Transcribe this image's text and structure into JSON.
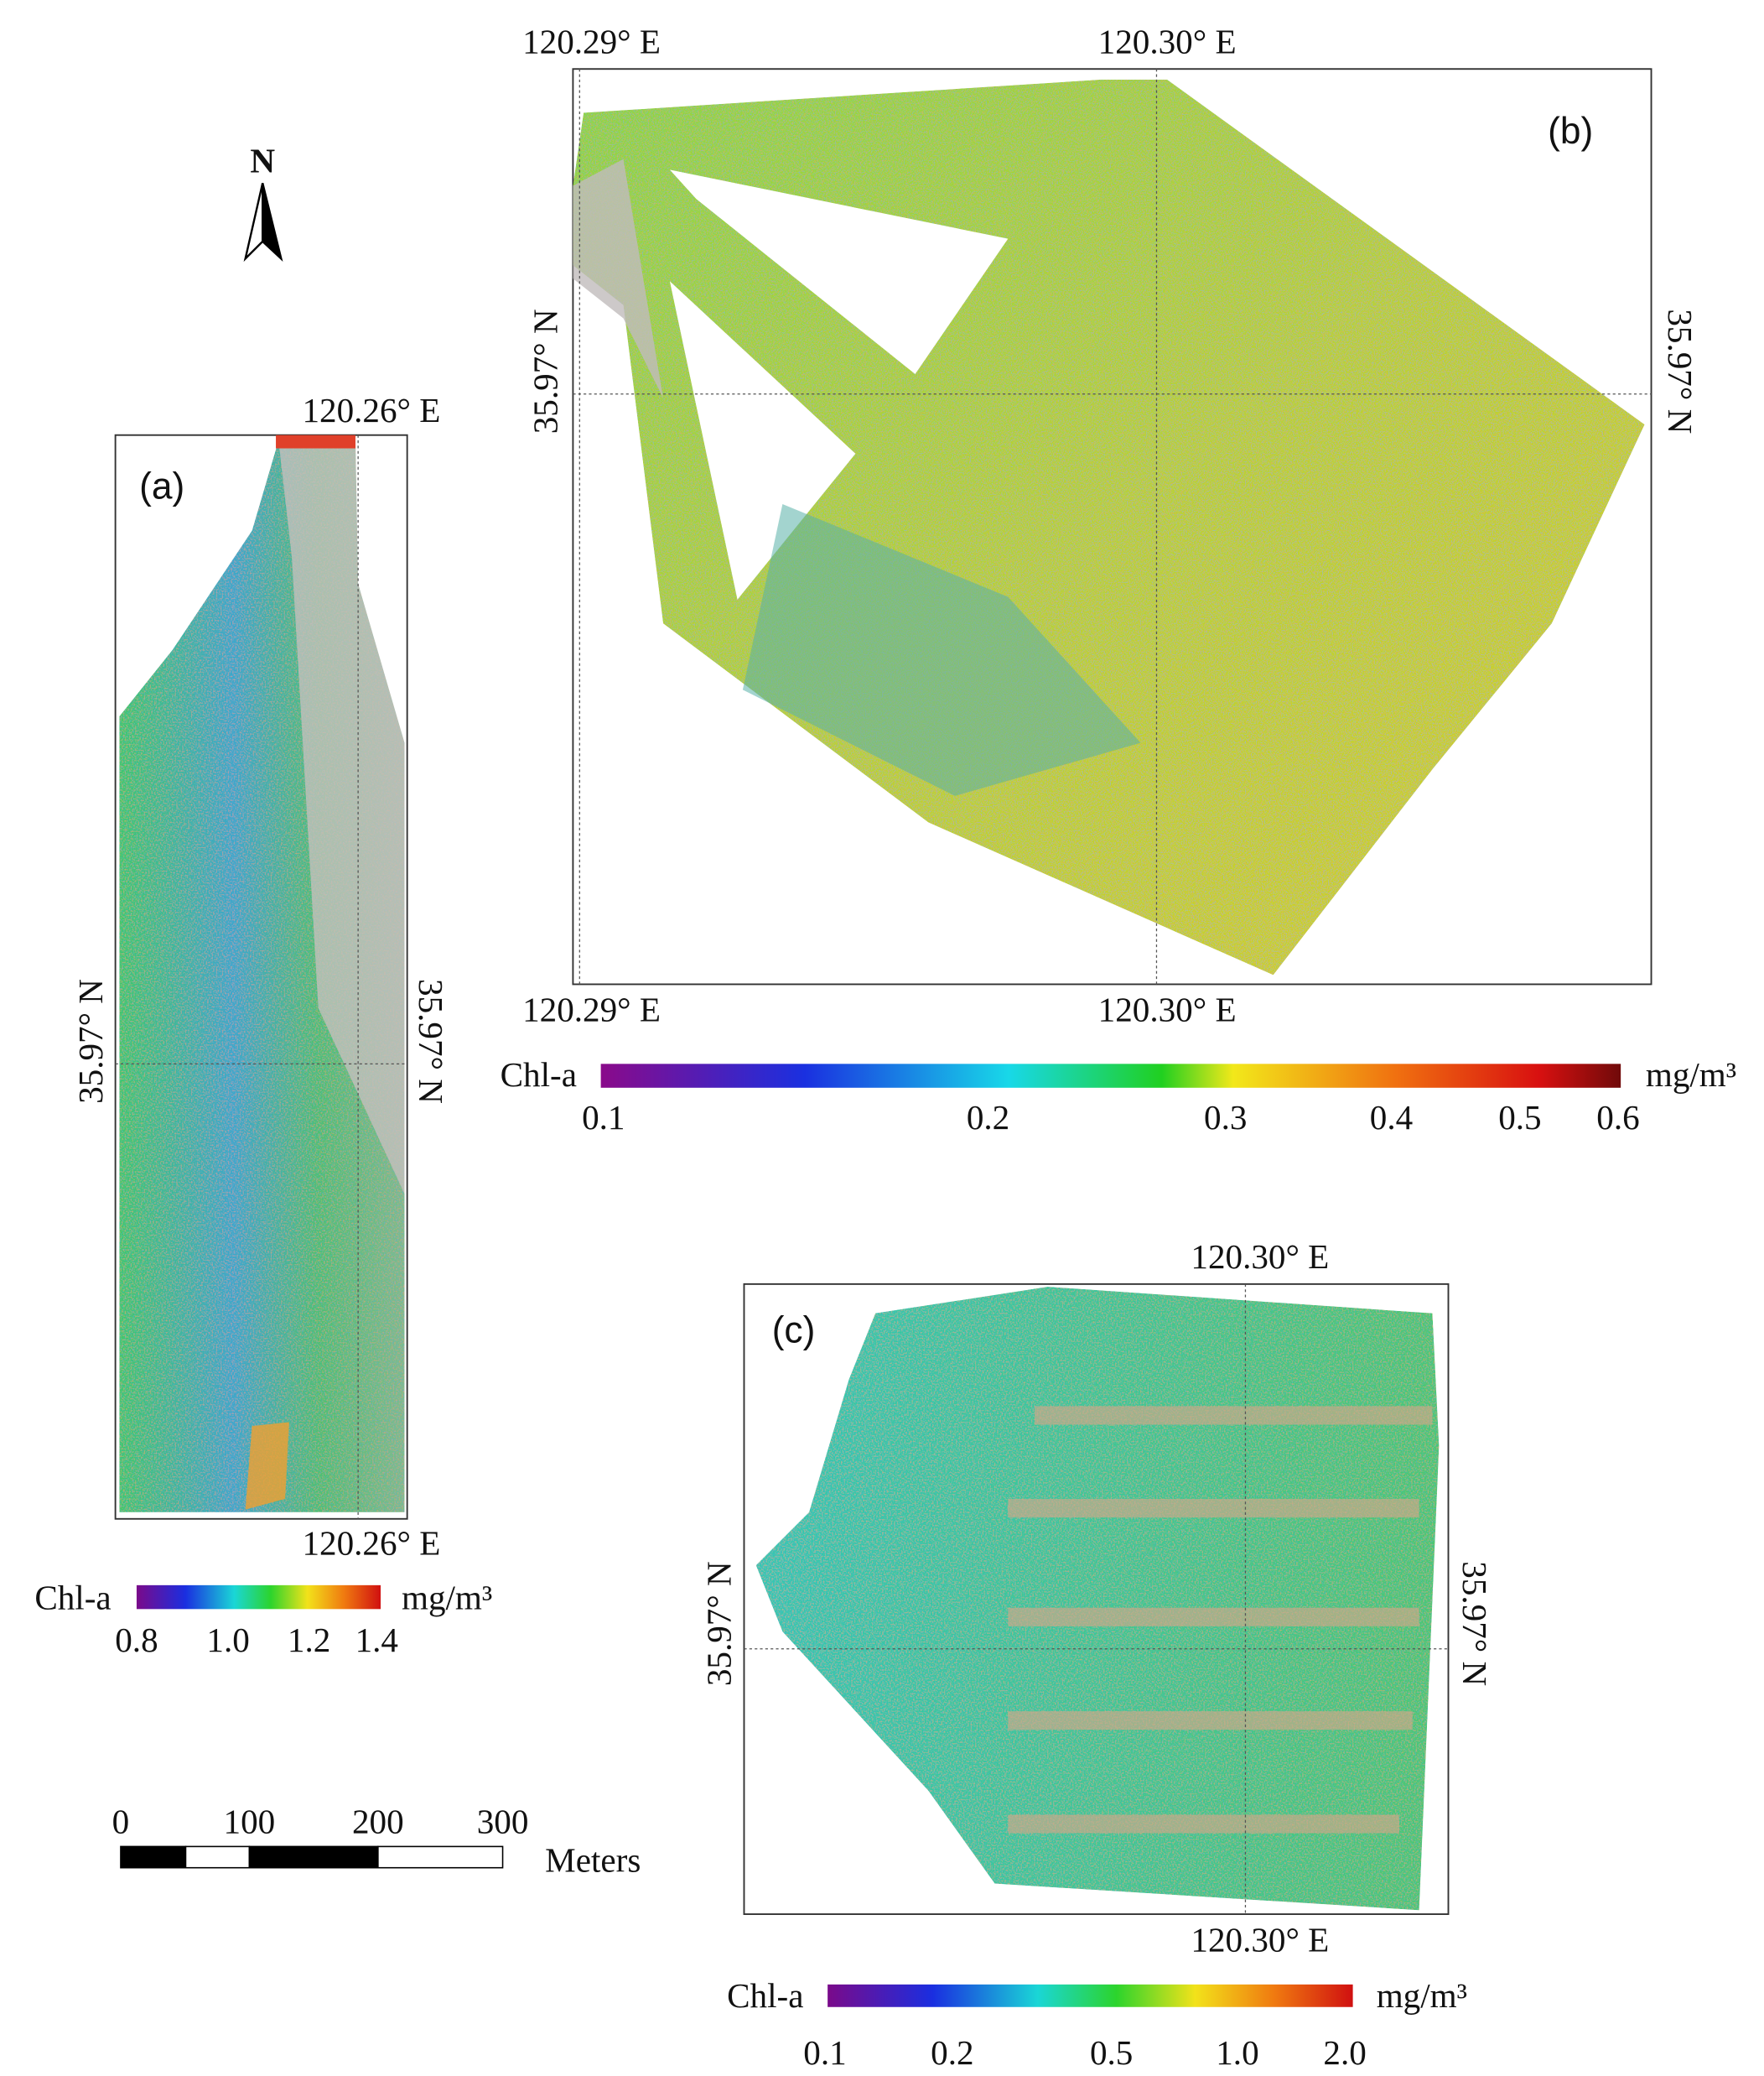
{
  "north_arrow": {
    "label": "N"
  },
  "scale_bar": {
    "ticks": [
      "0",
      "100",
      "200",
      "300"
    ],
    "unit": "Meters"
  },
  "panels": [
    {
      "label": "(a)",
      "lon_top": [
        "120.26° E"
      ],
      "lon_bottom": [
        "120.26° E"
      ],
      "lat_left": "35.97° N",
      "lat_right": "35.97° N",
      "legend": {
        "title": "Chl-a",
        "unit": "mg/m³",
        "ticks": [
          "0.8",
          "1.0",
          "1.2",
          "1.4"
        ]
      }
    },
    {
      "label": "(b)",
      "lon_top": [
        "120.29° E",
        "120.30° E"
      ],
      "lon_bottom": [
        "120.29° E",
        "120.30° E"
      ],
      "lat_left": "35.97° N",
      "lat_right": "35.97° N",
      "legend": {
        "title": "Chl-a",
        "unit": "mg/m³",
        "ticks": [
          "0.1",
          "0.2",
          "0.3",
          "0.4",
          "0.5",
          "0.6"
        ]
      }
    },
    {
      "label": "(c)",
      "lon_top": [
        "120.30° E"
      ],
      "lon_bottom": [
        "120.30° E"
      ],
      "lat_left": "35.97° N",
      "lat_right": "35.97° N",
      "legend": {
        "title": "Chl-a",
        "unit": "mg/m³",
        "ticks": [
          "0.1",
          "0.2",
          "0.5",
          "1.0",
          "2.0"
        ]
      }
    }
  ]
}
